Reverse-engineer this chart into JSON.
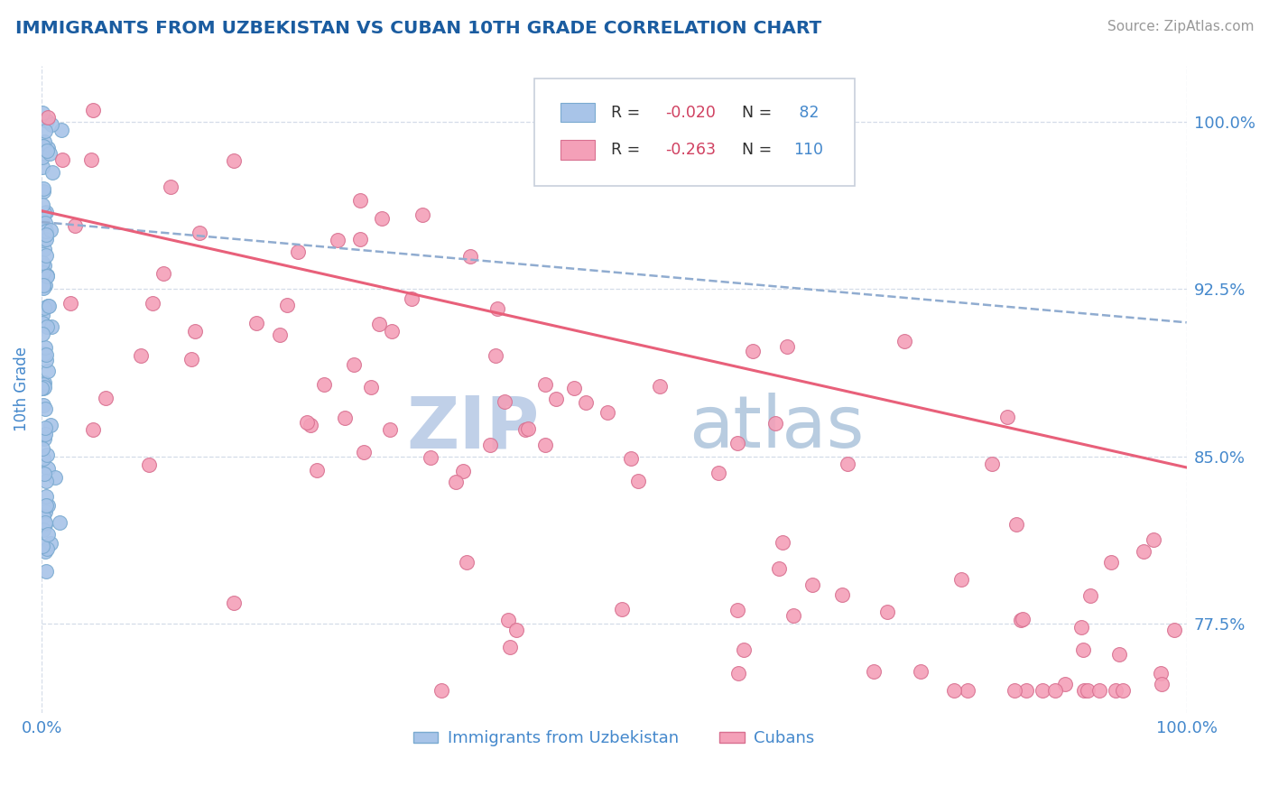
{
  "title": "IMMIGRANTS FROM UZBEKISTAN VS CUBAN 10TH GRADE CORRELATION CHART",
  "source": "Source: ZipAtlas.com",
  "ylabel": "10th Grade",
  "yaxis_labels": [
    "100.0%",
    "92.5%",
    "85.0%",
    "77.5%"
  ],
  "yaxis_values": [
    1.0,
    0.925,
    0.85,
    0.775
  ],
  "xmin": 0.0,
  "xmax": 1.0,
  "ymin": 0.735,
  "ymax": 1.025,
  "color_uzbekistan": "#a8c4e8",
  "color_uzbekistan_edge": "#7aaad0",
  "color_cuban": "#f4a0b8",
  "color_cuban_edge": "#d87090",
  "color_trend_uzbekistan": "#90acd0",
  "color_trend_cuban": "#e8607a",
  "color_title": "#1a5ca0",
  "color_axis_labels": "#4488cc",
  "color_source": "#999999",
  "color_legend_dark": "#303030",
  "color_legend_red": "#d04060",
  "color_legend_blue": "#4488cc",
  "color_legend_border": "#c8d0dc",
  "watermark_zip_color": "#c0d0e8",
  "watermark_atlas_color": "#b8cce0",
  "background_color": "#ffffff",
  "grid_color": "#d4dce8",
  "uzbek_trend_y_start": 0.955,
  "uzbek_trend_y_end": 0.91,
  "cuban_trend_y_start": 0.96,
  "cuban_trend_y_end": 0.845
}
